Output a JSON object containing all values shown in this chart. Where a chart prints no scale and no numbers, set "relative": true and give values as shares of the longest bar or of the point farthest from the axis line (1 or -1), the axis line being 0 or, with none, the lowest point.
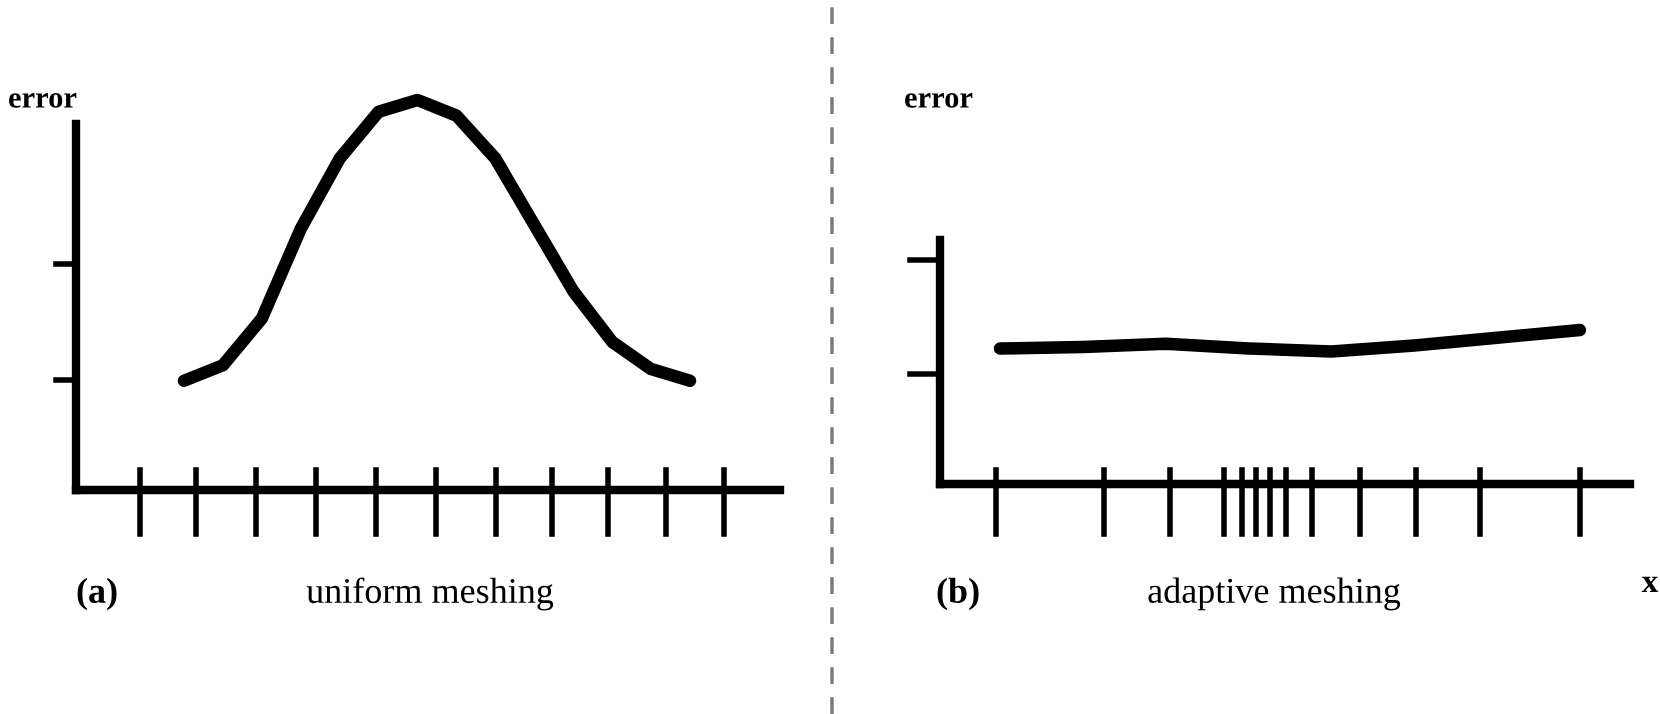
{
  "chart_data": [
    {
      "type": "line",
      "relative": true,
      "ylabel": "error",
      "categories": [
        null,
        null,
        null,
        null,
        null,
        null,
        null,
        null,
        null,
        null,
        null,
        null,
        null,
        null
      ],
      "series": [
        {
          "color": "#000000",
          "values": [
            0.28,
            0.32,
            0.44,
            0.67,
            0.85,
            0.97,
            1.0,
            0.96,
            0.85,
            0.68,
            0.51,
            0.38,
            0.31,
            0.28
          ]
        }
      ],
      "annotations": [
        "(a)",
        "uniform meshing"
      ],
      "legend": false,
      "marker": "none",
      "line_style": "solid"
    },
    {
      "type": "line",
      "relative": true,
      "ylabel": "error",
      "xlabel": "x",
      "categories": [
        null,
        null,
        null,
        null,
        null,
        null,
        null,
        null
      ],
      "series": [
        {
          "color": "#000000",
          "values": [
            0.88,
            0.89,
            0.91,
            0.88,
            0.86,
            0.9,
            0.95,
            1.0
          ]
        }
      ],
      "annotations": [
        "(b)",
        "adaptive meshing"
      ],
      "legend": false,
      "marker": "none",
      "line_style": "solid"
    }
  ]
}
